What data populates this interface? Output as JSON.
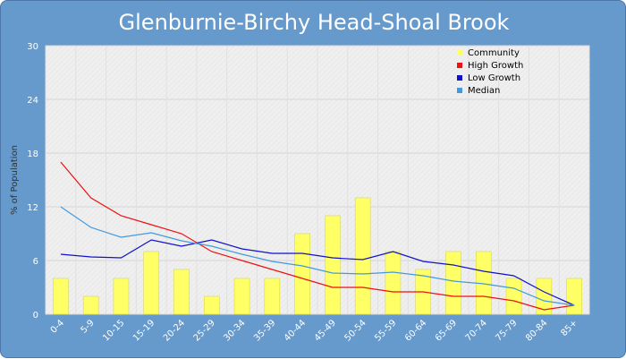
{
  "chart_data": {
    "type": "bar",
    "title": "Glenburnie-Birchy Head-Shoal Brook",
    "xlabel": "",
    "ylabel": "% of Population",
    "ylim": [
      0,
      30
    ],
    "yticks": [
      0,
      6,
      12,
      18,
      24,
      30
    ],
    "grid": true,
    "legend_position": "top-right",
    "categories": [
      "0-4",
      "5-9",
      "10-15",
      "15-19",
      "20-24",
      "25-29",
      "30-34",
      "35-39",
      "40-44",
      "45-49",
      "50-54",
      "55-59",
      "60-64",
      "65-69",
      "70-74",
      "75-79",
      "80-84",
      "85+"
    ],
    "series": [
      {
        "name": "Community",
        "kind": "bar",
        "color": "#ffff66",
        "values": [
          4,
          2,
          4,
          7,
          5,
          2,
          4,
          4,
          9,
          11,
          13,
          7,
          5,
          7,
          7,
          4,
          4,
          4
        ]
      },
      {
        "name": "High Growth",
        "kind": "line",
        "color": "#ee1111",
        "values": [
          17,
          13,
          11,
          10,
          9,
          7,
          6,
          5,
          4,
          3,
          3,
          2.5,
          2.5,
          2,
          2,
          1.5,
          0.5,
          1
        ]
      },
      {
        "name": "Low Growth",
        "kind": "line",
        "color": "#1111cc",
        "values": [
          6.7,
          6.4,
          6.3,
          8.3,
          7.6,
          8.3,
          7.3,
          6.8,
          6.8,
          6.3,
          6.1,
          7,
          5.9,
          5.5,
          4.8,
          4.3,
          2.5,
          1
        ]
      },
      {
        "name": "Median",
        "kind": "line",
        "color": "#4499dd",
        "values": [
          12,
          9.7,
          8.6,
          9.1,
          8.2,
          7.6,
          6.7,
          5.9,
          5.4,
          4.6,
          4.5,
          4.7,
          4.3,
          3.7,
          3.4,
          2.9,
          1.5,
          1
        ]
      }
    ]
  }
}
